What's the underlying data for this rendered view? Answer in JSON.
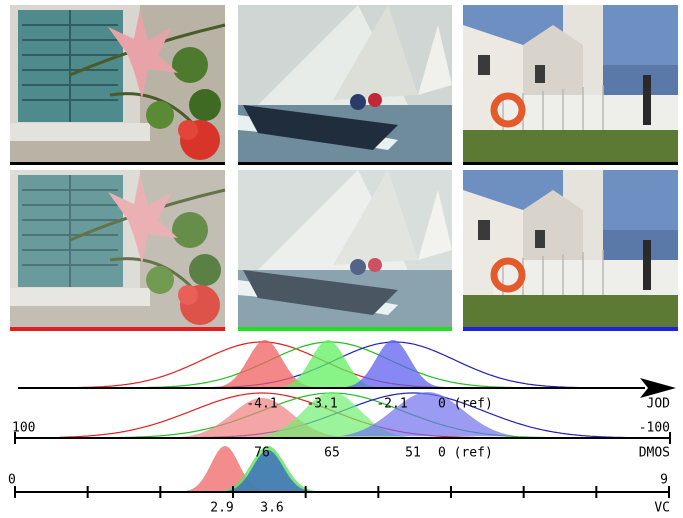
{
  "scales": [
    {
      "name": "JOD",
      "labels": [
        "-4.1",
        "-3.1",
        "-2.1",
        "0 (ref)"
      ]
    },
    {
      "name": "DMOS",
      "left": "100",
      "right": "-100",
      "labels": [
        "76",
        "65",
        "51",
        "0 (ref)"
      ]
    },
    {
      "name": "VC",
      "left": "0",
      "right": "9",
      "labels": [
        "2.9",
        "3.6"
      ]
    }
  ]
}
